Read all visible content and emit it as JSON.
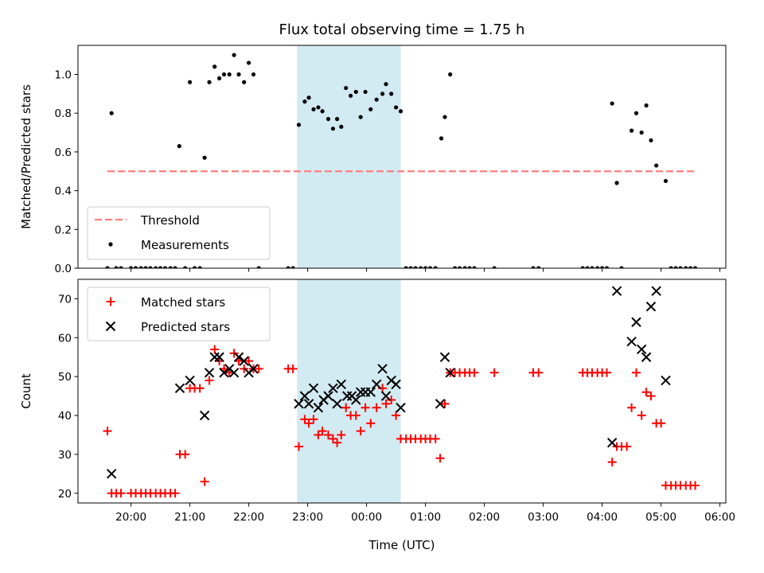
{
  "chart_data": [
    {
      "type": "scatter",
      "title": "Flux total observing time = 1.75 h",
      "xlabel": "",
      "ylabel": "Matched/Predicted stars",
      "ylim": [
        0,
        1.15
      ],
      "yticks": [
        "0.0",
        "0.2",
        "0.4",
        "0.6",
        "0.8",
        "1.0"
      ],
      "shaded_region": {
        "x": [
          22.82,
          24.58
        ],
        "color": "#add8e6"
      },
      "threshold": {
        "name": "Threshold",
        "y": 0.5,
        "x": [
          19.6,
          29.6
        ],
        "color": "#ff7f7f"
      },
      "legend": {
        "position": "lower left",
        "entries": [
          "Threshold",
          "Measurements"
        ]
      },
      "series": [
        {
          "name": "Measurements",
          "color": "#000000",
          "points": [
            [
              19.6,
              0
            ],
            [
              19.67,
              0.8
            ],
            [
              19.75,
              0
            ],
            [
              19.83,
              0
            ],
            [
              20.0,
              0
            ],
            [
              20.08,
              0
            ],
            [
              20.17,
              0
            ],
            [
              20.25,
              0
            ],
            [
              20.33,
              0
            ],
            [
              20.42,
              0
            ],
            [
              20.5,
              0
            ],
            [
              20.58,
              0
            ],
            [
              20.67,
              0
            ],
            [
              20.75,
              0
            ],
            [
              20.82,
              0.63
            ],
            [
              20.92,
              0
            ],
            [
              21.0,
              0.96
            ],
            [
              21.08,
              0
            ],
            [
              21.17,
              0
            ],
            [
              21.25,
              0.57
            ],
            [
              21.33,
              0.96
            ],
            [
              21.42,
              1.04
            ],
            [
              21.5,
              0.98
            ],
            [
              21.58,
              1.0
            ],
            [
              21.67,
              1.0
            ],
            [
              21.75,
              1.1
            ],
            [
              21.83,
              1.0
            ],
            [
              21.92,
              0.96
            ],
            [
              22.0,
              1.06
            ],
            [
              22.08,
              1.0
            ],
            [
              22.17,
              0
            ],
            [
              22.67,
              0
            ],
            [
              22.75,
              0
            ],
            [
              22.85,
              0.74
            ],
            [
              22.95,
              0.86
            ],
            [
              23.02,
              0.88
            ],
            [
              23.1,
              0.82
            ],
            [
              23.18,
              0.83
            ],
            [
              23.25,
              0.81
            ],
            [
              23.35,
              0.77
            ],
            [
              23.43,
              0.72
            ],
            [
              23.5,
              0.77
            ],
            [
              23.57,
              0.73
            ],
            [
              23.65,
              0.93
            ],
            [
              23.73,
              0.89
            ],
            [
              23.82,
              0.91
            ],
            [
              23.9,
              0.78
            ],
            [
              23.98,
              0.91
            ],
            [
              24.07,
              0.82
            ],
            [
              24.17,
              0.87
            ],
            [
              24.27,
              0.9
            ],
            [
              24.33,
              0.95
            ],
            [
              24.42,
              0.9
            ],
            [
              24.5,
              0.83
            ],
            [
              24.58,
              0.81
            ],
            [
              24.67,
              0
            ],
            [
              24.75,
              0
            ],
            [
              24.83,
              0
            ],
            [
              24.92,
              0
            ],
            [
              25.0,
              0
            ],
            [
              25.08,
              0
            ],
            [
              25.17,
              0
            ],
            [
              25.27,
              0.67
            ],
            [
              25.33,
              0.78
            ],
            [
              25.42,
              1.0
            ],
            [
              25.5,
              0
            ],
            [
              25.58,
              0
            ],
            [
              25.67,
              0
            ],
            [
              25.75,
              0
            ],
            [
              25.83,
              0
            ],
            [
              26.17,
              0
            ],
            [
              26.83,
              0
            ],
            [
              26.92,
              0
            ],
            [
              27.67,
              0
            ],
            [
              27.75,
              0
            ],
            [
              27.83,
              0
            ],
            [
              27.92,
              0
            ],
            [
              28.0,
              0
            ],
            [
              28.08,
              0
            ],
            [
              28.17,
              0.85
            ],
            [
              28.25,
              0.44
            ],
            [
              28.33,
              0
            ],
            [
              28.5,
              0.71
            ],
            [
              28.58,
              0.8
            ],
            [
              28.67,
              0.7
            ],
            [
              28.75,
              0.84
            ],
            [
              28.83,
              0.66
            ],
            [
              28.92,
              0.53
            ],
            [
              29.08,
              0.45
            ],
            [
              29.17,
              0
            ],
            [
              29.25,
              0
            ],
            [
              29.33,
              0
            ],
            [
              29.42,
              0
            ],
            [
              29.5,
              0
            ],
            [
              29.58,
              0
            ]
          ]
        }
      ]
    },
    {
      "type": "scatter",
      "title": "",
      "xlabel": "Time (UTC)",
      "ylabel": "Count",
      "ylim": [
        17.5,
        75
      ],
      "yticks": [
        "20",
        "30",
        "40",
        "50",
        "60",
        "70"
      ],
      "xlim": [
        19.1,
        30.1
      ],
      "xtick_values": [
        20,
        21,
        22,
        23,
        24,
        25,
        26,
        27,
        28,
        29,
        30
      ],
      "xtick_labels": [
        "20:00",
        "21:00",
        "22:00",
        "23:00",
        "00:00",
        "01:00",
        "02:00",
        "03:00",
        "04:00",
        "05:00",
        "06:00"
      ],
      "shaded_region": {
        "x": [
          22.82,
          24.58
        ],
        "color": "#add8e6"
      },
      "legend": {
        "position": "upper left",
        "entries": [
          "Matched stars",
          "Predicted stars"
        ]
      },
      "series": [
        {
          "name": "Matched stars",
          "color": "#ff0000",
          "marker": "+",
          "points": [
            [
              19.6,
              36
            ],
            [
              19.67,
              20
            ],
            [
              19.75,
              20
            ],
            [
              19.83,
              20
            ],
            [
              20.0,
              20
            ],
            [
              20.08,
              20
            ],
            [
              20.17,
              20
            ],
            [
              20.25,
              20
            ],
            [
              20.33,
              20
            ],
            [
              20.42,
              20
            ],
            [
              20.5,
              20
            ],
            [
              20.58,
              20
            ],
            [
              20.67,
              20
            ],
            [
              20.75,
              20
            ],
            [
              20.83,
              30
            ],
            [
              20.92,
              30
            ],
            [
              21.0,
              47
            ],
            [
              21.08,
              47
            ],
            [
              21.17,
              47
            ],
            [
              21.25,
              23
            ],
            [
              21.33,
              49
            ],
            [
              21.42,
              57
            ],
            [
              21.5,
              54
            ],
            [
              21.58,
              52
            ],
            [
              21.67,
              51
            ],
            [
              21.75,
              56
            ],
            [
              21.83,
              54
            ],
            [
              21.92,
              52
            ],
            [
              22.0,
              54
            ],
            [
              22.08,
              52
            ],
            [
              22.17,
              52
            ],
            [
              22.67,
              52
            ],
            [
              22.75,
              52
            ],
            [
              22.85,
              32
            ],
            [
              22.95,
              39
            ],
            [
              23.02,
              38
            ],
            [
              23.1,
              39
            ],
            [
              23.18,
              35
            ],
            [
              23.25,
              36
            ],
            [
              23.35,
              35
            ],
            [
              23.43,
              34
            ],
            [
              23.5,
              33
            ],
            [
              23.57,
              35
            ],
            [
              23.65,
              42
            ],
            [
              23.73,
              40
            ],
            [
              23.82,
              40
            ],
            [
              23.9,
              36
            ],
            [
              23.98,
              42
            ],
            [
              24.07,
              38
            ],
            [
              24.17,
              42
            ],
            [
              24.27,
              47
            ],
            [
              24.33,
              43
            ],
            [
              24.42,
              44
            ],
            [
              24.5,
              40
            ],
            [
              24.58,
              34
            ],
            [
              24.67,
              34
            ],
            [
              24.75,
              34
            ],
            [
              24.83,
              34
            ],
            [
              24.92,
              34
            ],
            [
              25.0,
              34
            ],
            [
              25.08,
              34
            ],
            [
              25.17,
              34
            ],
            [
              25.25,
              29
            ],
            [
              25.33,
              43
            ],
            [
              25.42,
              51
            ],
            [
              25.5,
              51
            ],
            [
              25.58,
              51
            ],
            [
              25.67,
              51
            ],
            [
              25.75,
              51
            ],
            [
              25.83,
              51
            ],
            [
              26.17,
              51
            ],
            [
              26.83,
              51
            ],
            [
              26.92,
              51
            ],
            [
              27.67,
              51
            ],
            [
              27.75,
              51
            ],
            [
              27.83,
              51
            ],
            [
              27.92,
              51
            ],
            [
              28.0,
              51
            ],
            [
              28.08,
              51
            ],
            [
              28.17,
              28
            ],
            [
              28.25,
              32
            ],
            [
              28.33,
              32
            ],
            [
              28.42,
              32
            ],
            [
              28.5,
              42
            ],
            [
              28.58,
              51
            ],
            [
              28.67,
              40
            ],
            [
              28.75,
              46
            ],
            [
              28.83,
              45
            ],
            [
              28.92,
              38
            ],
            [
              29.0,
              38
            ],
            [
              29.08,
              22
            ],
            [
              29.17,
              22
            ],
            [
              29.25,
              22
            ],
            [
              29.33,
              22
            ],
            [
              29.42,
              22
            ],
            [
              29.5,
              22
            ],
            [
              29.58,
              22
            ]
          ]
        },
        {
          "name": "Predicted stars",
          "color": "#000000",
          "marker": "x",
          "points": [
            [
              19.67,
              25
            ],
            [
              20.83,
              47
            ],
            [
              21.0,
              49
            ],
            [
              21.25,
              40
            ],
            [
              21.33,
              51
            ],
            [
              21.42,
              55
            ],
            [
              21.5,
              55
            ],
            [
              21.58,
              51
            ],
            [
              21.67,
              52
            ],
            [
              21.75,
              51
            ],
            [
              21.83,
              55
            ],
            [
              21.92,
              54
            ],
            [
              22.0,
              51
            ],
            [
              22.08,
              52
            ],
            [
              22.85,
              43
            ],
            [
              22.95,
              45
            ],
            [
              23.02,
              43
            ],
            [
              23.1,
              47
            ],
            [
              23.18,
              42
            ],
            [
              23.27,
              44
            ],
            [
              23.35,
              45
            ],
            [
              23.43,
              47
            ],
            [
              23.5,
              43
            ],
            [
              23.57,
              48
            ],
            [
              23.67,
              45
            ],
            [
              23.75,
              45
            ],
            [
              23.82,
              44
            ],
            [
              23.9,
              46
            ],
            [
              23.98,
              46
            ],
            [
              24.07,
              46
            ],
            [
              24.17,
              48
            ],
            [
              24.27,
              52
            ],
            [
              24.33,
              45
            ],
            [
              24.42,
              49
            ],
            [
              24.5,
              48
            ],
            [
              24.58,
              42
            ],
            [
              25.25,
              43
            ],
            [
              25.33,
              55
            ],
            [
              25.42,
              51
            ],
            [
              28.17,
              33
            ],
            [
              28.25,
              72
            ],
            [
              28.5,
              59
            ],
            [
              28.58,
              64
            ],
            [
              28.67,
              57
            ],
            [
              28.75,
              55
            ],
            [
              28.83,
              68
            ],
            [
              28.92,
              72
            ],
            [
              29.08,
              49
            ]
          ]
        }
      ]
    }
  ]
}
